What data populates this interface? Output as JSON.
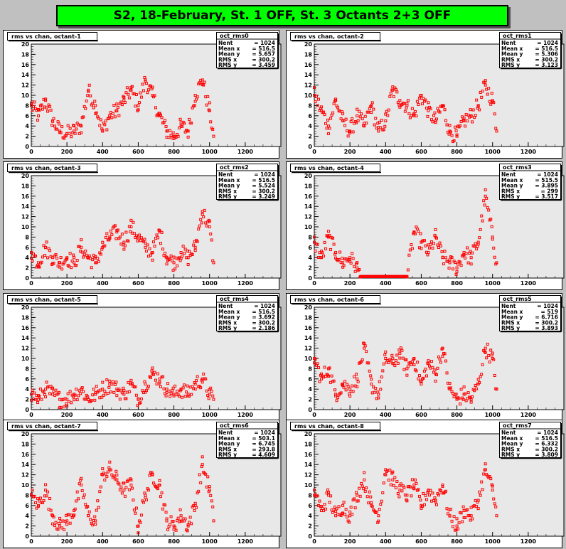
{
  "canvas_title": "S2, 18-February, St. 1 OFF, St. 3 Octants 2+3 OFF",
  "colors": {
    "marker": "#ff0000",
    "canvas_bg": "#c0c0c0",
    "frame_bg": "#ffffff",
    "plot_bg": "#e8e8e8",
    "title_box": "#00ff00"
  },
  "chart_data": [
    {
      "type": "scatter",
      "title": "rms vs chan, octant-1",
      "stats": {
        "name": "oct_rms0",
        "lines": [
          [
            "Nent",
            "= 1024"
          ],
          [
            "Mean x",
            "= 516.5"
          ],
          [
            "Mean y",
            "= 5.657"
          ],
          [
            "RMS x",
            "= 300.2"
          ],
          [
            "RMS y",
            "= 3.459"
          ]
        ]
      },
      "xlim": [
        0,
        1400
      ],
      "ylim": [
        0,
        20
      ],
      "xticks": [
        0,
        200,
        400,
        600,
        800,
        1000,
        1200
      ],
      "yticks": [
        0,
        2,
        4,
        6,
        8,
        10,
        12,
        14,
        16,
        18,
        20
      ],
      "series": [
        {
          "x": [
            0,
            40,
            80,
            120,
            160,
            200,
            240,
            280,
            320,
            360,
            400,
            440,
            480,
            520,
            560,
            600,
            640,
            680,
            720,
            760,
            800,
            840,
            880,
            920,
            960,
            1000,
            1023
          ],
          "y": [
            8,
            6,
            9,
            5,
            3,
            2.5,
            3,
            4,
            11,
            8,
            3,
            6,
            7,
            9,
            11,
            8,
            13,
            10,
            6,
            3,
            2,
            4,
            3,
            10,
            13,
            7,
            2
          ]
        }
      ]
    },
    {
      "type": "scatter",
      "title": "rms vs chan, octant-2",
      "stats": {
        "name": "oct_rms1",
        "lines": [
          [
            "Nent",
            "= 1024"
          ],
          [
            "Mean x",
            "= 516.5"
          ],
          [
            "Mean y",
            "= 5.306"
          ],
          [
            "RMS x",
            "= 300.2"
          ],
          [
            "RMS y",
            "= 3.123"
          ]
        ]
      },
      "xlim": [
        0,
        1400
      ],
      "ylim": [
        0,
        20
      ],
      "xticks": [
        0,
        200,
        400,
        600,
        800,
        1000,
        1200
      ],
      "yticks": [
        0,
        2,
        4,
        6,
        8,
        10,
        12,
        14,
        16,
        18,
        20
      ],
      "series": [
        {
          "x": [
            0,
            40,
            80,
            120,
            160,
            200,
            240,
            280,
            320,
            360,
            400,
            440,
            480,
            520,
            560,
            600,
            640,
            680,
            720,
            760,
            800,
            840,
            880,
            920,
            960,
            1000,
            1023
          ],
          "y": [
            10,
            7,
            4,
            9,
            5,
            3,
            6,
            4,
            8,
            3,
            5,
            11,
            9,
            8,
            6,
            10,
            7,
            5,
            8,
            3,
            2,
            5,
            6,
            8,
            12,
            9,
            3
          ]
        }
      ]
    },
    {
      "type": "scatter",
      "title": "rms vs chan, octant-3",
      "stats": {
        "name": "oct_rms2",
        "lines": [
          [
            "Nent",
            "= 1024"
          ],
          [
            "Mean x",
            "= 516.5"
          ],
          [
            "Mean y",
            "= 5.524"
          ],
          [
            "RMS x",
            "= 300.2"
          ],
          [
            "RMS y",
            "= 3.249"
          ]
        ]
      },
      "xlim": [
        0,
        1400
      ],
      "ylim": [
        0,
        20
      ],
      "xticks": [
        0,
        200,
        400,
        600,
        800,
        1000,
        1200
      ],
      "yticks": [
        0,
        2,
        4,
        6,
        8,
        10,
        12,
        14,
        16,
        18,
        20
      ],
      "series": [
        {
          "x": [
            0,
            40,
            80,
            120,
            160,
            200,
            240,
            280,
            320,
            360,
            400,
            440,
            480,
            520,
            560,
            600,
            640,
            680,
            720,
            760,
            800,
            840,
            880,
            920,
            960,
            1000,
            1023
          ],
          "y": [
            5,
            3,
            6,
            4,
            3,
            4,
            3,
            6,
            4,
            3,
            6,
            8,
            9,
            7,
            10,
            8,
            6,
            5,
            9,
            4,
            3,
            5,
            4,
            6,
            13,
            10,
            3
          ]
        }
      ]
    },
    {
      "type": "scatter",
      "title": "rms vs chan, octant-4",
      "stats": {
        "name": "oct_rms3",
        "lines": [
          [
            "Nent",
            "= 1024"
          ],
          [
            "Mean x",
            "= 515.5"
          ],
          [
            "Mean y",
            "= 3.895"
          ],
          [
            "RMS x",
            "= 299"
          ],
          [
            "RMS y",
            "= 3.517"
          ]
        ]
      },
      "xlim": [
        0,
        1400
      ],
      "ylim": [
        0,
        20
      ],
      "xticks": [
        0,
        200,
        400,
        600,
        800,
        1000,
        1200
      ],
      "yticks": [
        0,
        2,
        4,
        6,
        8,
        10,
        12,
        14,
        16,
        18,
        20
      ],
      "series": [
        {
          "x": [
            0,
            40,
            80,
            120,
            160,
            200,
            240,
            260,
            300,
            340,
            380,
            420,
            460,
            500,
            520,
            560,
            600,
            640,
            680,
            720,
            760,
            800,
            840,
            880,
            920,
            960,
            1000,
            1023
          ],
          "y": [
            7,
            4,
            8,
            5,
            3,
            4,
            2,
            0.3,
            0.3,
            0.3,
            0.3,
            0.3,
            0.3,
            0.3,
            0.3,
            9,
            7,
            5,
            8,
            4,
            3,
            2,
            5,
            4,
            7,
            16,
            8,
            3
          ]
        }
      ]
    },
    {
      "type": "scatter",
      "title": "rms vs chan, octant-5",
      "stats": {
        "name": "oct_rms4",
        "lines": [
          [
            "Nent",
            "= 1024"
          ],
          [
            "Mean x",
            "= 516.5"
          ],
          [
            "Mean y",
            "= 3.692"
          ],
          [
            "RMS x",
            "= 300.2"
          ],
          [
            "RMS y",
            "= 2.186"
          ]
        ]
      },
      "xlim": [
        0,
        1400
      ],
      "ylim": [
        0,
        20
      ],
      "xticks": [
        0,
        200,
        400,
        600,
        800,
        1000,
        1200
      ],
      "yticks": [
        0,
        2,
        4,
        6,
        8,
        10,
        12,
        14,
        16,
        18,
        20
      ],
      "series": [
        {
          "x": [
            0,
            40,
            80,
            120,
            160,
            200,
            240,
            280,
            320,
            360,
            400,
            440,
            480,
            520,
            560,
            600,
            640,
            680,
            720,
            760,
            800,
            840,
            880,
            920,
            960,
            1000,
            1023
          ],
          "y": [
            3,
            2,
            4,
            3,
            2,
            2,
            3,
            4,
            2,
            3,
            4,
            5,
            4,
            3,
            5,
            2,
            5,
            7,
            6,
            4,
            3,
            4,
            3,
            5,
            6,
            3,
            2
          ]
        }
      ]
    },
    {
      "type": "scatter",
      "title": "rms vs chan, octant-6",
      "stats": {
        "name": "oct_rms5",
        "lines": [
          [
            "Nent",
            "= 1024"
          ],
          [
            "Mean x",
            "=    519"
          ],
          [
            "Mean y",
            "= 6.716"
          ],
          [
            "RMS x",
            "= 300.2"
          ],
          [
            "RMS y",
            "= 3.893"
          ]
        ]
      },
      "xlim": [
        0,
        1400
      ],
      "ylim": [
        0,
        20
      ],
      "xticks": [
        0,
        200,
        400,
        600,
        800,
        1000,
        1200
      ],
      "yticks": [
        0,
        2,
        4,
        6,
        8,
        10,
        12,
        14,
        16,
        18,
        20
      ],
      "series": [
        {
          "x": [
            0,
            40,
            80,
            120,
            160,
            200,
            240,
            280,
            320,
            360,
            400,
            440,
            480,
            520,
            560,
            600,
            640,
            680,
            720,
            760,
            800,
            840,
            880,
            920,
            960,
            1000,
            1023
          ],
          "y": [
            10,
            6,
            8,
            3,
            5,
            4,
            6,
            12,
            5,
            3,
            10,
            9,
            11,
            8,
            10,
            5,
            9,
            7,
            12,
            4,
            2,
            3,
            2,
            5,
            12,
            10,
            4
          ]
        }
      ]
    },
    {
      "type": "scatter",
      "title": "rms vs chan, octant-7",
      "stats": {
        "name": "oct_rms6",
        "lines": [
          [
            "Nent",
            "= 1024"
          ],
          [
            "Mean x",
            "= 503.1"
          ],
          [
            "Mean y",
            "= 6.745"
          ],
          [
            "RMS x",
            "= 293.8"
          ],
          [
            "RMS y",
            "= 4.609"
          ]
        ]
      },
      "xlim": [
        0,
        1400
      ],
      "ylim": [
        0,
        20
      ],
      "xticks": [
        0,
        200,
        400,
        600,
        800,
        1000,
        1200
      ],
      "yticks": [
        0,
        2,
        4,
        6,
        8,
        10,
        12,
        14,
        16,
        18,
        20
      ],
      "series": [
        {
          "x": [
            0,
            40,
            80,
            120,
            160,
            200,
            240,
            280,
            320,
            360,
            400,
            440,
            480,
            520,
            560,
            600,
            640,
            680,
            720,
            760,
            800,
            840,
            880,
            920,
            960,
            1000,
            1023
          ],
          "y": [
            8,
            6,
            9,
            4,
            2,
            3,
            5,
            10,
            4,
            3,
            12,
            13,
            11,
            9,
            10,
            2,
            8,
            12,
            10,
            3,
            2,
            4,
            2,
            6,
            14,
            9,
            3
          ]
        }
      ]
    },
    {
      "type": "scatter",
      "title": "rms vs chan, octant-8",
      "stats": {
        "name": "oct_rms7",
        "lines": [
          [
            "Nent",
            "= 1024"
          ],
          [
            "Mean x",
            "= 516.5"
          ],
          [
            "Mean y",
            "= 6.332"
          ],
          [
            "RMS x",
            "= 300.2"
          ],
          [
            "RMS y",
            "= 3.809"
          ]
        ]
      },
      "xlim": [
        0,
        1400
      ],
      "ylim": [
        0,
        20
      ],
      "xticks": [
        0,
        200,
        400,
        600,
        800,
        1000,
        1200
      ],
      "yticks": [
        0,
        2,
        4,
        6,
        8,
        10,
        12,
        14,
        16,
        18,
        20
      ],
      "series": [
        {
          "x": [
            0,
            40,
            80,
            120,
            160,
            200,
            240,
            280,
            320,
            360,
            400,
            440,
            480,
            520,
            560,
            600,
            640,
            680,
            720,
            760,
            800,
            840,
            880,
            920,
            960,
            1000,
            1023
          ],
          "y": [
            9,
            5,
            8,
            4,
            6,
            4,
            8,
            11,
            6,
            4,
            13,
            11,
            9,
            8,
            10,
            6,
            9,
            7,
            10,
            4,
            2,
            5,
            4,
            7,
            13,
            9,
            4
          ]
        }
      ]
    }
  ]
}
